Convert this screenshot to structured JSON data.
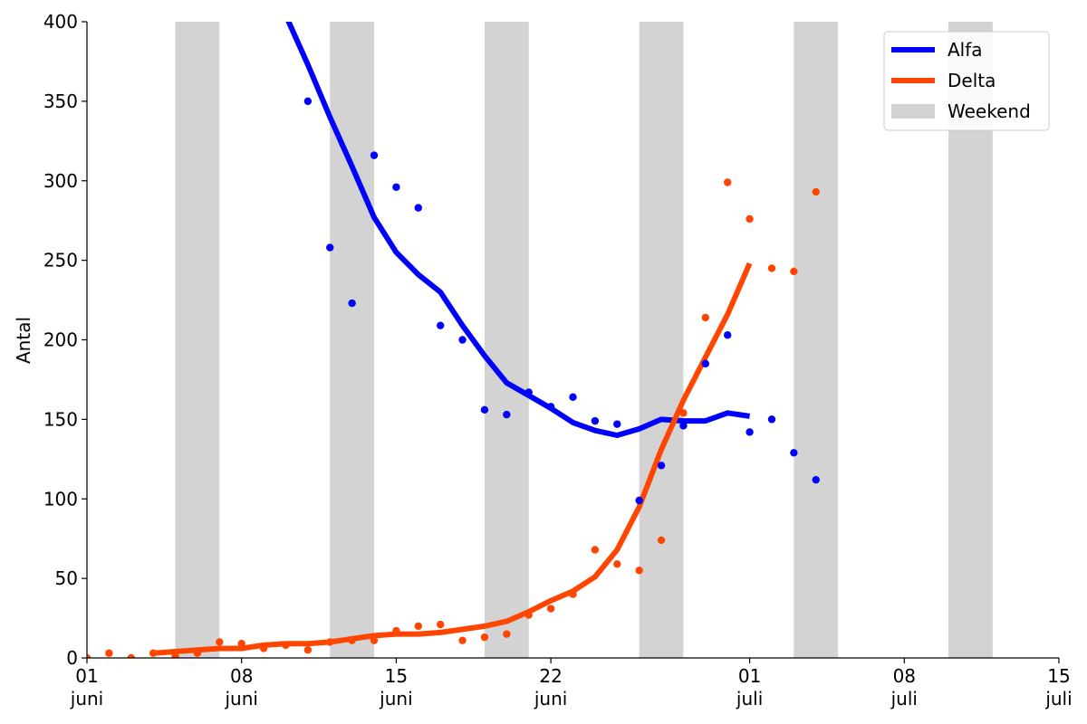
{
  "chart_data": {
    "type": "line",
    "ylabel": "Antal",
    "xlabel": "",
    "ylim": [
      0,
      400
    ],
    "xlim": [
      "2021-06-01",
      "2021-07-15"
    ],
    "y_ticks": [
      0,
      50,
      100,
      150,
      200,
      250,
      300,
      350,
      400
    ],
    "x_ticks": [
      {
        "date": "2021-06-01",
        "day": "01",
        "month": "juni"
      },
      {
        "date": "2021-06-08",
        "day": "08",
        "month": "juni"
      },
      {
        "date": "2021-06-15",
        "day": "15",
        "month": "juni"
      },
      {
        "date": "2021-06-22",
        "day": "22",
        "month": "juni"
      },
      {
        "date": "2021-07-01",
        "day": "01",
        "month": "juli"
      },
      {
        "date": "2021-07-08",
        "day": "08",
        "month": "juli"
      },
      {
        "date": "2021-07-15",
        "day": "15",
        "month": "juli"
      }
    ],
    "weekends": [
      [
        "2021-06-05",
        "2021-06-07"
      ],
      [
        "2021-06-12",
        "2021-06-14"
      ],
      [
        "2021-06-19",
        "2021-06-21"
      ],
      [
        "2021-06-26",
        "2021-06-28"
      ],
      [
        "2021-07-03",
        "2021-07-05"
      ],
      [
        "2021-07-10",
        "2021-07-12"
      ]
    ],
    "legend": {
      "position": "top-right",
      "entries": [
        {
          "label": "Alfa",
          "kind": "line",
          "color": "#0000ff"
        },
        {
          "label": "Delta",
          "kind": "line",
          "color": "#ff4500"
        },
        {
          "label": "Weekend",
          "kind": "patch",
          "color": "#d3d3d3"
        }
      ]
    },
    "series": [
      {
        "name": "Alfa",
        "color": "#0000ff",
        "trend": {
          "x": [
            "2021-06-10",
            "2021-06-11",
            "2021-06-12",
            "2021-06-13",
            "2021-06-14",
            "2021-06-15",
            "2021-06-16",
            "2021-06-17",
            "2021-06-18",
            "2021-06-19",
            "2021-06-20",
            "2021-06-21",
            "2021-06-22",
            "2021-06-23",
            "2021-06-24",
            "2021-06-25",
            "2021-06-26",
            "2021-06-27",
            "2021-06-28",
            "2021-06-29",
            "2021-06-30",
            "2021-07-01"
          ],
          "y": [
            404,
            373,
            340,
            309,
            277,
            255,
            241,
            230,
            209,
            190,
            173,
            165,
            157,
            148,
            143,
            140,
            144,
            150,
            149,
            149,
            154,
            152
          ]
        },
        "points": {
          "x": [
            "2021-06-11",
            "2021-06-12",
            "2021-06-13",
            "2021-06-14",
            "2021-06-15",
            "2021-06-16",
            "2021-06-17",
            "2021-06-18",
            "2021-06-19",
            "2021-06-20",
            "2021-06-21",
            "2021-06-22",
            "2021-06-23",
            "2021-06-24",
            "2021-06-25",
            "2021-06-26",
            "2021-06-27",
            "2021-06-28",
            "2021-06-29",
            "2021-06-30",
            "2021-07-01",
            "2021-07-02",
            "2021-07-03",
            "2021-07-04"
          ],
          "y": [
            350,
            258,
            223,
            316,
            296,
            283,
            209,
            200,
            156,
            153,
            167,
            158,
            164,
            149,
            147,
            99,
            121,
            146,
            185,
            203,
            142,
            150,
            129,
            112
          ]
        }
      },
      {
        "name": "Delta",
        "color": "#ff4500",
        "trend": {
          "x": [
            "2021-06-04",
            "2021-06-05",
            "2021-06-06",
            "2021-06-07",
            "2021-06-08",
            "2021-06-09",
            "2021-06-10",
            "2021-06-11",
            "2021-06-12",
            "2021-06-13",
            "2021-06-14",
            "2021-06-15",
            "2021-06-16",
            "2021-06-17",
            "2021-06-18",
            "2021-06-19",
            "2021-06-20",
            "2021-06-21",
            "2021-06-22",
            "2021-06-23",
            "2021-06-24",
            "2021-06-25",
            "2021-06-26",
            "2021-06-27",
            "2021-06-28",
            "2021-06-29",
            "2021-06-30",
            "2021-07-01"
          ],
          "y": [
            3,
            4,
            5,
            6,
            6,
            8,
            9,
            9,
            10,
            12,
            14,
            15,
            15,
            16,
            18,
            20,
            23,
            29,
            36,
            42,
            51,
            68,
            95,
            131,
            162,
            189,
            216,
            248
          ]
        },
        "points": {
          "x": [
            "2021-06-01",
            "2021-06-02",
            "2021-06-03",
            "2021-06-04",
            "2021-06-05",
            "2021-06-06",
            "2021-06-07",
            "2021-06-08",
            "2021-06-09",
            "2021-06-10",
            "2021-06-11",
            "2021-06-12",
            "2021-06-13",
            "2021-06-14",
            "2021-06-15",
            "2021-06-16",
            "2021-06-17",
            "2021-06-18",
            "2021-06-19",
            "2021-06-20",
            "2021-06-21",
            "2021-06-22",
            "2021-06-23",
            "2021-06-24",
            "2021-06-25",
            "2021-06-26",
            "2021-06-27",
            "2021-06-28",
            "2021-06-29",
            "2021-06-30",
            "2021-07-01",
            "2021-07-02",
            "2021-07-03",
            "2021-07-04"
          ],
          "y": [
            0,
            3,
            0,
            3,
            1,
            3,
            10,
            9,
            6,
            8,
            5,
            10,
            11,
            11,
            17,
            20,
            21,
            11,
            13,
            15,
            27,
            31,
            40,
            68,
            59,
            55,
            74,
            154,
            214,
            299,
            276,
            245,
            243,
            293
          ]
        }
      }
    ]
  }
}
